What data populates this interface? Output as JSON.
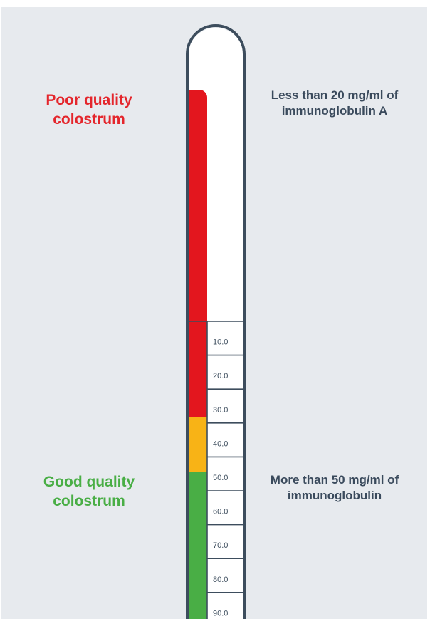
{
  "labels": {
    "poor": [
      "Poor quality",
      "colostrum"
    ],
    "good": [
      "Good quality",
      "colostrum"
    ]
  },
  "notes": {
    "top": [
      "Less than 20 mg/ml of",
      "immunoglobulin A"
    ],
    "bottom": [
      "More than 50 mg/ml of",
      "immunoglobulin"
    ]
  },
  "scale": {
    "ticks": [
      "10.0",
      "20.0",
      "30.0",
      "40.0",
      "50.0",
      "60.0",
      "70.0",
      "80.0",
      "90.0"
    ]
  },
  "colors": {
    "poor": "#e3161e",
    "borderline": "#f8b316",
    "good": "#49ae45",
    "tube_outline": "#3d4d5d",
    "poor_text": "#e4262c",
    "good_text": "#49ae45",
    "note_text": "#3a4a5c"
  }
}
